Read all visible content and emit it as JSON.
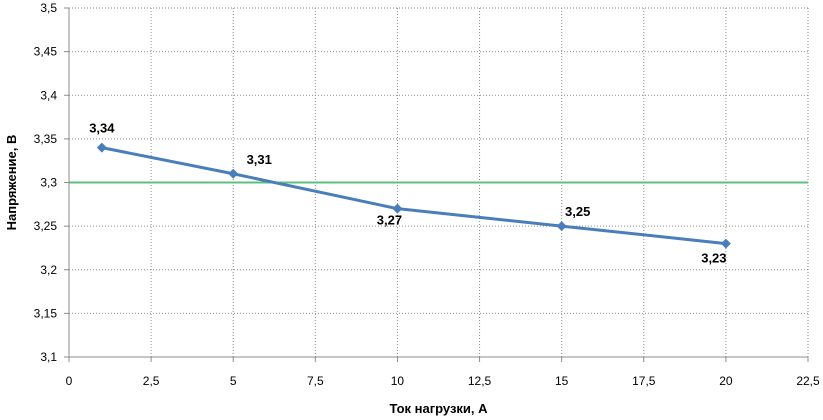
{
  "chart_data": {
    "type": "line",
    "title": "",
    "xlabel": "Ток нагрузки, А",
    "ylabel": "Напряжение, В",
    "xlim": [
      0,
      22.5
    ],
    "ylim": [
      3.1,
      3.5
    ],
    "x_ticks": [
      "0",
      "2,5",
      "5",
      "7,5",
      "10",
      "12,5",
      "15",
      "17,5",
      "20",
      "22,5"
    ],
    "y_ticks": [
      "3,1",
      "3,15",
      "3,2",
      "3,25",
      "3,3",
      "3,35",
      "3,4",
      "3,45",
      "3,5"
    ],
    "grid": true,
    "series": [
      {
        "x": [
          1,
          5,
          10,
          15,
          20
        ],
        "values": [
          3.34,
          3.31,
          3.27,
          3.25,
          3.23
        ],
        "labels": [
          "3,34",
          "3,31",
          "3,27",
          "3,25",
          "3,23"
        ],
        "color": "#4a7ebb",
        "marker": "diamond"
      }
    ],
    "reference_lines": [
      {
        "axis": "y",
        "value": 3.3,
        "color": "#5fbf7f"
      }
    ]
  }
}
